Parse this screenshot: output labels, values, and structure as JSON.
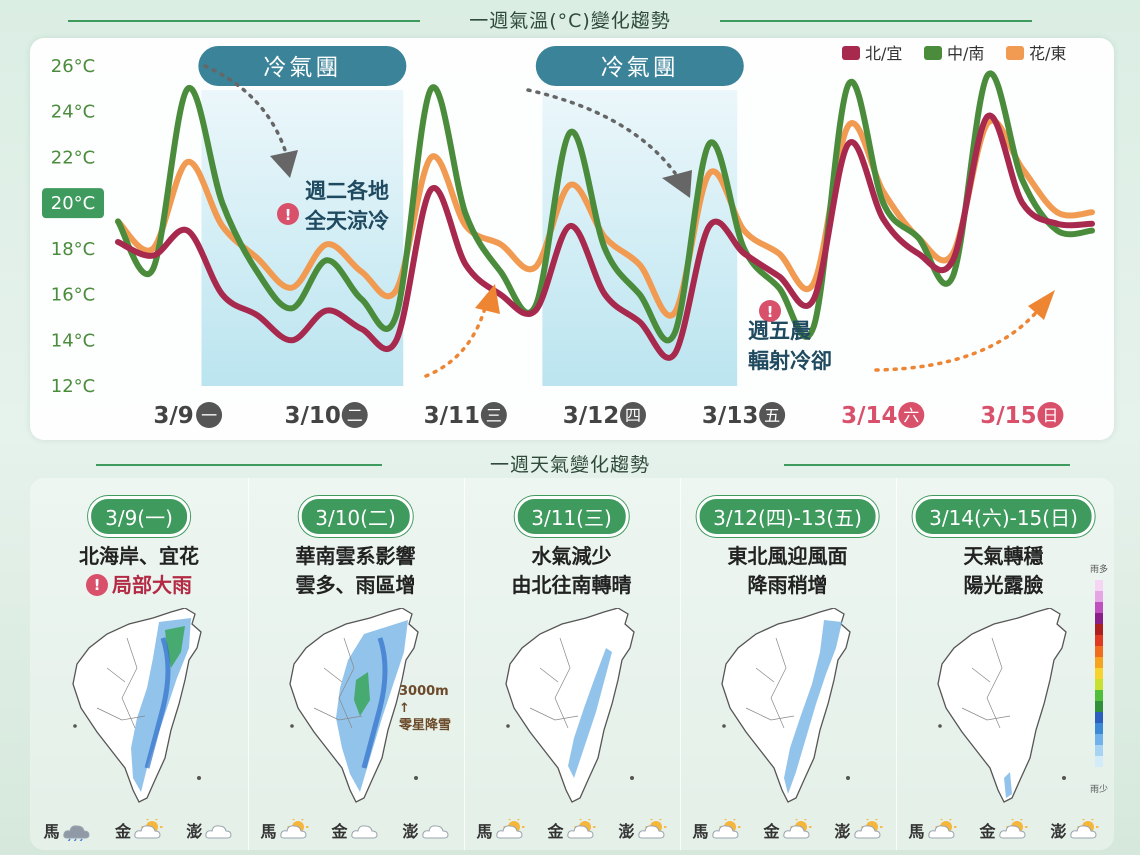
{
  "chart_title": "一週氣溫(°C)變化趨勢",
  "weather_title": "一週天氣變化趨勢",
  "chart_data": {
    "type": "line",
    "ylim": [
      12,
      26
    ],
    "yticks": [
      "12°C",
      "14°C",
      "16°C",
      "18°C",
      "20°C",
      "22°C",
      "24°C",
      "26°C"
    ],
    "highlight_tick": "20°C",
    "categories": [
      {
        "date": "3/9",
        "day": "一",
        "weekend": false
      },
      {
        "date": "3/10",
        "day": "二",
        "weekend": false
      },
      {
        "date": "3/11",
        "day": "三",
        "weekend": false
      },
      {
        "date": "3/12",
        "day": "四",
        "weekend": false
      },
      {
        "date": "3/13",
        "day": "五",
        "weekend": false
      },
      {
        "date": "3/14",
        "day": "六",
        "weekend": true
      },
      {
        "date": "3/15",
        "day": "日",
        "weekend": true
      }
    ],
    "x": [
      0.0,
      0.25,
      0.5,
      0.75,
      1.0,
      1.25,
      1.5,
      1.75,
      2.0,
      2.25,
      2.5,
      2.75,
      3.0,
      3.25,
      3.5,
      3.75,
      4.0,
      4.25,
      4.5,
      4.75,
      5.0,
      5.25,
      5.5,
      5.75,
      6.0,
      6.25,
      6.5,
      6.75,
      7.0
    ],
    "series": [
      {
        "name": "北/宜",
        "color": "#a8294e",
        "values": [
          18.3,
          17.7,
          18.8,
          16.0,
          15.1,
          14.0,
          15.3,
          14.5,
          14.0,
          20.6,
          17.3,
          16.0,
          15.3,
          19.0,
          16.0,
          14.8,
          13.4,
          19.0,
          17.8,
          16.8,
          15.8,
          22.6,
          19.3,
          17.8,
          17.5,
          23.8,
          20.0,
          19.1,
          19.1
        ]
      },
      {
        "name": "中/南",
        "color": "#4a8c3c",
        "values": [
          19.2,
          17.1,
          25.0,
          20.0,
          17.0,
          15.4,
          17.5,
          15.8,
          15.1,
          25.0,
          19.5,
          17.0,
          15.5,
          23.1,
          18.0,
          16.0,
          14.3,
          22.6,
          18.0,
          16.3,
          14.6,
          25.2,
          20.0,
          18.5,
          16.8,
          25.6,
          21.0,
          18.8,
          18.8
        ]
      },
      {
        "name": "花/東",
        "color": "#f09a52",
        "values": [
          19.2,
          18.0,
          21.8,
          19.0,
          17.6,
          16.3,
          18.2,
          17.0,
          16.2,
          22.0,
          19.0,
          18.2,
          17.2,
          20.8,
          18.5,
          17.3,
          15.2,
          21.3,
          18.8,
          17.8,
          16.5,
          23.4,
          20.5,
          18.5,
          17.8,
          23.5,
          21.5,
          19.6,
          19.6
        ]
      }
    ],
    "bands": [
      {
        "x0": 0.6,
        "x1": 2.05,
        "label": "冷氣團"
      },
      {
        "x0": 3.05,
        "x1": 4.45,
        "label": "冷氣團"
      }
    ],
    "legend": "top-right",
    "annotations": [
      {
        "lines": [
          "週二各地",
          "全天涼冷"
        ]
      },
      {
        "lines": [
          "週五晨",
          "輻射冷卻"
        ]
      }
    ]
  },
  "days": [
    {
      "label": "3/9(一)",
      "desc": [
        "北海岸、宜花"
      ],
      "warn": "局部大雨",
      "islands": [
        {
          "name": "馬",
          "wx": "rain"
        },
        {
          "name": "金",
          "wx": "partly"
        },
        {
          "name": "澎",
          "wx": "cloud"
        }
      ]
    },
    {
      "label": "3/10(二)",
      "desc": [
        "華南雲系影響",
        "雲多、雨區增"
      ],
      "note": [
        "3000m ↑",
        "零星降雪"
      ],
      "islands": [
        {
          "name": "馬",
          "wx": "partly"
        },
        {
          "name": "金",
          "wx": "cloud"
        },
        {
          "name": "澎",
          "wx": "cloud"
        }
      ]
    },
    {
      "label": "3/11(三)",
      "desc": [
        "水氣減少",
        "由北往南轉晴"
      ],
      "islands": [
        {
          "name": "馬",
          "wx": "partly"
        },
        {
          "name": "金",
          "wx": "partly"
        },
        {
          "name": "澎",
          "wx": "partly"
        }
      ]
    },
    {
      "label": "3/12(四)-13(五)",
      "desc": [
        "東北風迎風面",
        "降雨稍增"
      ],
      "islands": [
        {
          "name": "馬",
          "wx": "partly"
        },
        {
          "name": "金",
          "wx": "partly"
        },
        {
          "name": "澎",
          "wx": "partly"
        }
      ]
    },
    {
      "label": "3/14(六)-15(日)",
      "desc": [
        "天氣轉穩",
        "陽光露臉"
      ],
      "islands": [
        {
          "name": "馬",
          "wx": "partly"
        },
        {
          "name": "金",
          "wx": "partly"
        },
        {
          "name": "澎",
          "wx": "partly"
        }
      ]
    }
  ],
  "rain_legend": {
    "top": "雨多",
    "bottom": "雨少"
  }
}
